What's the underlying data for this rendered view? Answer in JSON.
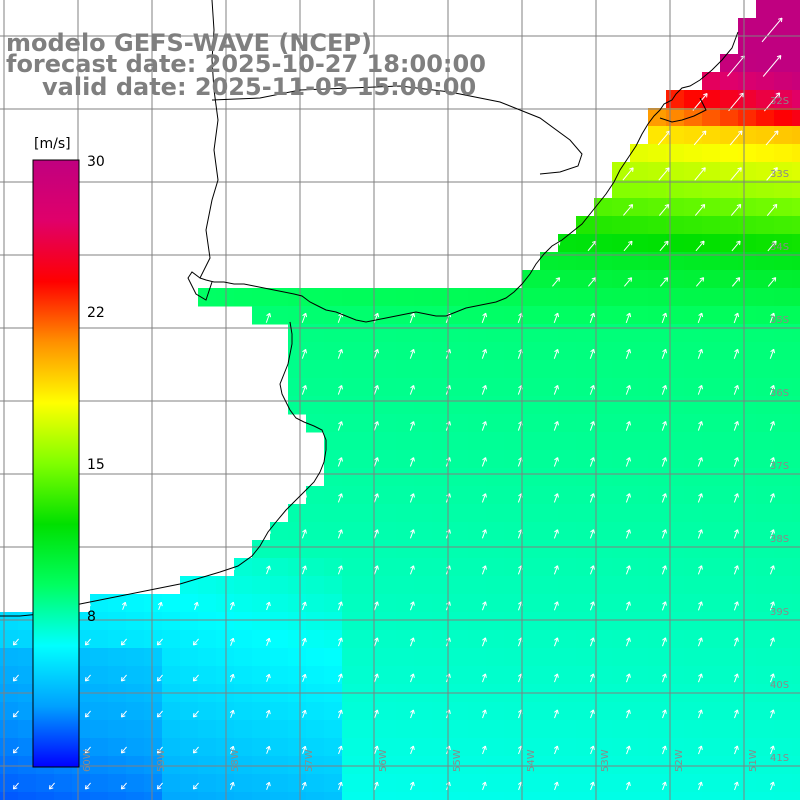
{
  "title": {
    "model": "modelo GEFS-WAVE (NCEP)",
    "forecast": "forecast date: 2025-10-27 18:00:00",
    "valid": "valid date: 2025-11-05 15:00:00"
  },
  "colorbar": {
    "unit": "[m/s]",
    "ticks": [
      "30",
      "22",
      "15",
      "8"
    ],
    "tick_values": [
      30,
      22,
      15,
      8
    ],
    "range": [
      0,
      30
    ],
    "colors": [
      "#0000ff",
      "#00a0ff",
      "#00ffff",
      "#00ff60",
      "#00e000",
      "#80ff00",
      "#ffff00",
      "#ff9000",
      "#ff0000",
      "#e0006a",
      "#c00080"
    ]
  },
  "lat_labels": [
    "32S",
    "33S",
    "34S",
    "35S",
    "36S",
    "37S",
    "38S",
    "39S",
    "40S",
    "41S"
  ],
  "lon_labels": [
    "60W",
    "59W",
    "58W",
    "57W",
    "56W",
    "55W",
    "54W",
    "53W",
    "52W",
    "51W"
  ],
  "colors": {
    "title": "#7f7f7f",
    "grid": "#808080",
    "coast": "#000000",
    "land": "#ffffff",
    "arrows": "#ffffff"
  }
}
